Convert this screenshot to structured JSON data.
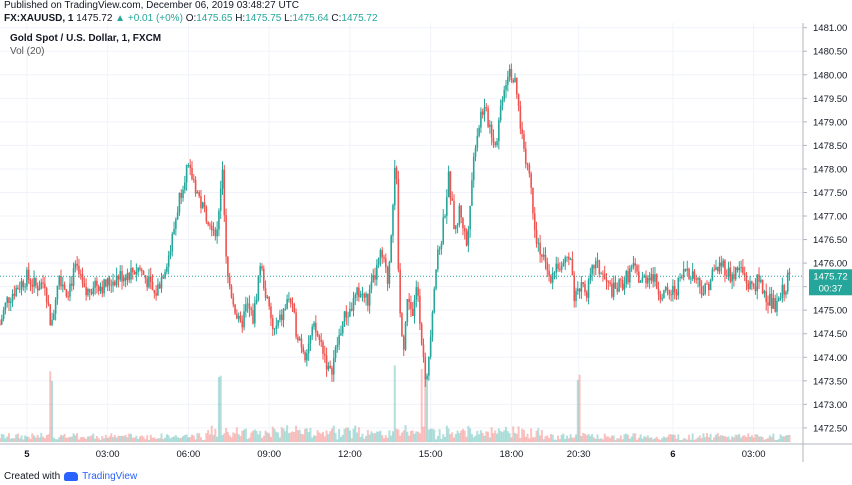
{
  "header": {
    "published": "Published on TradingView.com, December 06, 2019 03:48:27 UTC",
    "symbol": "FX:XAUUSD, 1",
    "last": "1475.72",
    "change_arrow": "▲",
    "change": "+0.01 (+0%)",
    "o_label": "O:",
    "o": "1475.65",
    "h_label": "H:",
    "h": "1475.75",
    "l_label": "L:",
    "l": "1475.64",
    "c_label": "C:",
    "c": "1475.72"
  },
  "legend": {
    "title": "Gold Spot / U.S. Dollar, 1, FXCM",
    "volume": "Vol (20)"
  },
  "footer": {
    "created_with": "Created with",
    "brand": "TradingView"
  },
  "price_tag": {
    "price": "1475.72",
    "countdown": "00:37"
  },
  "colors": {
    "up": "#26a69a",
    "down": "#ef5350",
    "grid": "#f0f3fa",
    "axis_text": "#131722",
    "tag_bg": "#26a69a",
    "last_line": "#26a69a"
  },
  "chart_data": {
    "type": "candlestick",
    "symbol": "FX:XAUUSD",
    "interval": "1",
    "y_ticks": [
      "1472.50",
      "1473.00",
      "1473.50",
      "1474.00",
      "1474.50",
      "1475.00",
      "1475.50",
      "1476.00",
      "1476.50",
      "1477.00",
      "1477.50",
      "1478.00",
      "1478.50",
      "1479.00",
      "1479.50",
      "1480.00",
      "1480.50",
      "1481.00"
    ],
    "y_tick_values": [
      1472.5,
      1473.0,
      1473.5,
      1474.0,
      1474.5,
      1475.0,
      1475.5,
      1476.0,
      1476.5,
      1477.0,
      1477.5,
      1478.0,
      1478.5,
      1479.0,
      1479.5,
      1480.0,
      1480.5,
      1481.0
    ],
    "ylim": [
      1472.2,
      1481.1
    ],
    "x_ticks": [
      "5",
      "03:00",
      "06:00",
      "09:00",
      "12:00",
      "15:00",
      "18:00",
      "20:30",
      "6",
      "03:00"
    ],
    "x_tick_minutes": [
      0,
      180,
      360,
      540,
      720,
      900,
      1080,
      1230,
      1440,
      1620
    ],
    "xlim_minutes": [
      -60,
      1730
    ],
    "last_price": 1475.72,
    "price_path": [
      [
        -60,
        1474.7
      ],
      [
        -45,
        1475.2
      ],
      [
        -30,
        1475.4
      ],
      [
        -10,
        1475.6
      ],
      [
        0,
        1475.7
      ],
      [
        20,
        1475.5
      ],
      [
        40,
        1475.6
      ],
      [
        55,
        1474.6
      ],
      [
        70,
        1475.8
      ],
      [
        90,
        1475.4
      ],
      [
        110,
        1475.9
      ],
      [
        130,
        1475.3
      ],
      [
        150,
        1475.6
      ],
      [
        170,
        1475.5
      ],
      [
        200,
        1475.7
      ],
      [
        230,
        1475.8
      ],
      [
        250,
        1475.9
      ],
      [
        270,
        1475.6
      ],
      [
        285,
        1475.3
      ],
      [
        300,
        1475.7
      ],
      [
        320,
        1476.3
      ],
      [
        340,
        1477.4
      ],
      [
        355,
        1478.0
      ],
      [
        370,
        1477.8
      ],
      [
        390,
        1477.2
      ],
      [
        410,
        1476.9
      ],
      [
        425,
        1476.6
      ],
      [
        435,
        1478.1
      ],
      [
        445,
        1475.8
      ],
      [
        460,
        1475.2
      ],
      [
        475,
        1474.6
      ],
      [
        490,
        1475.1
      ],
      [
        505,
        1474.8
      ],
      [
        520,
        1476.0
      ],
      [
        535,
        1475.2
      ],
      [
        550,
        1474.5
      ],
      [
        570,
        1474.9
      ],
      [
        585,
        1475.3
      ],
      [
        600,
        1474.6
      ],
      [
        620,
        1474.1
      ],
      [
        640,
        1474.6
      ],
      [
        660,
        1474.2
      ],
      [
        675,
        1473.6
      ],
      [
        690,
        1474.2
      ],
      [
        705,
        1474.8
      ],
      [
        720,
        1475.0
      ],
      [
        740,
        1475.4
      ],
      [
        760,
        1475.2
      ],
      [
        775,
        1475.7
      ],
      [
        790,
        1476.2
      ],
      [
        805,
        1475.6
      ],
      [
        815,
        1477.2
      ],
      [
        822,
        1478.5
      ],
      [
        830,
        1475.0
      ],
      [
        840,
        1474.3
      ],
      [
        850,
        1475.4
      ],
      [
        860,
        1474.8
      ],
      [
        870,
        1475.6
      ],
      [
        880,
        1474.4
      ],
      [
        890,
        1473.3
      ],
      [
        900,
        1474.6
      ],
      [
        910,
        1475.8
      ],
      [
        925,
        1476.6
      ],
      [
        940,
        1477.8
      ],
      [
        955,
        1476.6
      ],
      [
        965,
        1477.2
      ],
      [
        980,
        1476.4
      ],
      [
        990,
        1477.6
      ],
      [
        1000,
        1478.6
      ],
      [
        1015,
        1479.3
      ],
      [
        1030,
        1479.0
      ],
      [
        1045,
        1478.5
      ],
      [
        1060,
        1479.6
      ],
      [
        1075,
        1480.2
      ],
      [
        1090,
        1479.7
      ],
      [
        1105,
        1478.6
      ],
      [
        1120,
        1477.9
      ],
      [
        1135,
        1476.6
      ],
      [
        1150,
        1476.1
      ],
      [
        1165,
        1475.7
      ],
      [
        1180,
        1476.0
      ],
      [
        1195,
        1475.8
      ],
      [
        1210,
        1476.3
      ],
      [
        1220,
        1475.3
      ],
      [
        1235,
        1475.6
      ],
      [
        1250,
        1475.4
      ],
      [
        1265,
        1476.0
      ],
      [
        1280,
        1475.8
      ],
      [
        1295,
        1475.5
      ],
      [
        1310,
        1475.4
      ],
      [
        1330,
        1475.6
      ],
      [
        1350,
        1475.9
      ],
      [
        1370,
        1475.6
      ],
      [
        1390,
        1475.8
      ],
      [
        1410,
        1475.4
      ],
      [
        1430,
        1475.3
      ],
      [
        1450,
        1475.5
      ],
      [
        1470,
        1475.9
      ],
      [
        1490,
        1475.7
      ],
      [
        1510,
        1475.4
      ],
      [
        1530,
        1475.8
      ],
      [
        1550,
        1476.0
      ],
      [
        1570,
        1475.7
      ],
      [
        1590,
        1475.9
      ],
      [
        1610,
        1475.5
      ],
      [
        1630,
        1475.6
      ],
      [
        1650,
        1475.3
      ],
      [
        1670,
        1475.0
      ],
      [
        1685,
        1475.4
      ],
      [
        1700,
        1475.72
      ]
    ],
    "volume_spikes_minutes": [
      55,
      430,
      820,
      880,
      890,
      1230
    ]
  }
}
